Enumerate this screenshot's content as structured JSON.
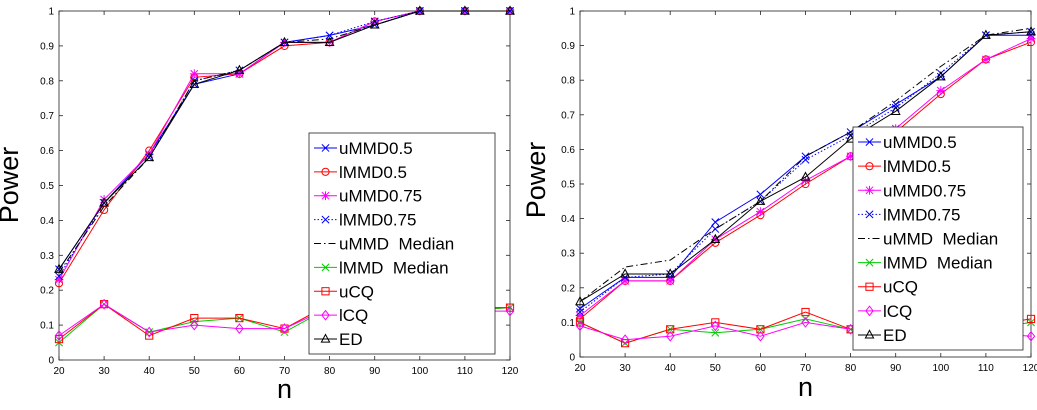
{
  "chart_data": [
    {
      "type": "line",
      "xlabel": "n",
      "ylabel": "Power",
      "xlim": [
        20,
        120
      ],
      "ylim": [
        0,
        1
      ],
      "x_ticks": [
        "20",
        "30",
        "40",
        "50",
        "60",
        "70",
        "80",
        "90",
        "100",
        "110",
        "120"
      ],
      "y_ticks": [
        "0",
        "0.1",
        "0.2",
        "0.3",
        "0.4",
        "0.5",
        "0.6",
        "0.7",
        "0.8",
        "0.9",
        "1"
      ],
      "grid": false,
      "legend_placement": "right",
      "x": [
        20,
        30,
        40,
        50,
        60,
        70,
        80,
        90,
        100,
        110,
        120
      ],
      "series": [
        {
          "name": "uMMD0.5",
          "color": "#0000ff",
          "line": "solid",
          "marker": "x",
          "values": [
            0.26,
            0.45,
            0.59,
            0.79,
            0.82,
            0.91,
            0.93,
            0.96,
            1.0,
            1.0,
            1.0
          ]
        },
        {
          "name": "lMMD0.5",
          "color": "#ff0000",
          "line": "solid",
          "marker": "o",
          "values": [
            0.22,
            0.43,
            0.6,
            0.81,
            0.82,
            0.9,
            0.91,
            0.97,
            1.0,
            1.0,
            1.0
          ]
        },
        {
          "name": "uMMD0.75",
          "color": "#ff00ff",
          "line": "solid",
          "marker": "*",
          "values": [
            0.23,
            0.46,
            0.59,
            0.82,
            0.82,
            0.91,
            0.91,
            0.97,
            1.0,
            1.0,
            1.0
          ]
        },
        {
          "name": "lMMD0.75",
          "color": "#0000ff",
          "line": "dotted",
          "marker": "x",
          "values": [
            0.24,
            0.45,
            0.58,
            0.8,
            0.83,
            0.91,
            0.93,
            0.97,
            1.0,
            1.0,
            1.0
          ]
        },
        {
          "name": "uMMD  Median",
          "color": "#000000",
          "line": "dashdot",
          "marker": "none",
          "values": [
            0.25,
            0.44,
            0.58,
            0.8,
            0.83,
            0.91,
            0.92,
            0.96,
            1.0,
            1.0,
            1.0
          ]
        },
        {
          "name": "lMMD  Median",
          "color": "#00cc00",
          "line": "solid",
          "marker": "x",
          "values": [
            0.05,
            0.16,
            0.08,
            0.11,
            0.12,
            0.08,
            0.15,
            0.13,
            0.14,
            0.14,
            0.15
          ]
        },
        {
          "name": "uCQ",
          "color": "#ff0000",
          "line": "solid",
          "marker": "s",
          "values": [
            0.06,
            0.16,
            0.07,
            0.12,
            0.12,
            0.09,
            0.16,
            0.14,
            0.14,
            0.15,
            0.15
          ]
        },
        {
          "name": "lCQ",
          "color": "#ff00ff",
          "line": "solid",
          "marker": "d",
          "values": [
            0.07,
            0.16,
            0.08,
            0.1,
            0.09,
            0.09,
            0.15,
            0.13,
            0.13,
            0.14,
            0.14
          ]
        },
        {
          "name": "ED",
          "color": "#000000",
          "line": "solid",
          "marker": "^",
          "values": [
            0.26,
            0.45,
            0.58,
            0.79,
            0.83,
            0.91,
            0.91,
            0.96,
            1.0,
            1.0,
            1.0
          ]
        }
      ]
    },
    {
      "type": "line",
      "xlabel": "n",
      "ylabel": "Power",
      "xlim": [
        20,
        120
      ],
      "ylim": [
        0,
        1
      ],
      "x_ticks": [
        "20",
        "30",
        "40",
        "50",
        "60",
        "70",
        "80",
        "90",
        "100",
        "110",
        "120"
      ],
      "y_ticks": [
        "0",
        "0.1",
        "0.2",
        "0.3",
        "0.4",
        "0.5",
        "0.6",
        "0.7",
        "0.8",
        "0.9",
        "1"
      ],
      "grid": false,
      "legend_placement": "right",
      "x": [
        20,
        30,
        40,
        50,
        60,
        70,
        80,
        90,
        100,
        110,
        120
      ],
      "series": [
        {
          "name": "uMMD0.5",
          "color": "#0000ff",
          "line": "solid",
          "marker": "x",
          "values": [
            0.14,
            0.23,
            0.23,
            0.39,
            0.47,
            0.58,
            0.65,
            0.73,
            0.81,
            0.93,
            0.93
          ]
        },
        {
          "name": "lMMD0.5",
          "color": "#ff0000",
          "line": "solid",
          "marker": "o",
          "values": [
            0.11,
            0.22,
            0.22,
            0.33,
            0.41,
            0.5,
            0.58,
            0.65,
            0.76,
            0.86,
            0.91
          ]
        },
        {
          "name": "uMMD0.75",
          "color": "#ff00ff",
          "line": "solid",
          "marker": "*",
          "values": [
            0.12,
            0.22,
            0.22,
            0.34,
            0.42,
            0.51,
            0.58,
            0.66,
            0.77,
            0.86,
            0.92
          ]
        },
        {
          "name": "lMMD0.75",
          "color": "#0000ff",
          "line": "dotted",
          "marker": "x",
          "values": [
            0.13,
            0.23,
            0.24,
            0.37,
            0.45,
            0.57,
            0.64,
            0.72,
            0.82,
            0.93,
            0.94
          ]
        },
        {
          "name": "uMMD  Median",
          "color": "#000000",
          "line": "dashdot",
          "marker": "none",
          "values": [
            0.16,
            0.26,
            0.28,
            0.37,
            0.45,
            0.58,
            0.65,
            0.74,
            0.84,
            0.93,
            0.95
          ]
        },
        {
          "name": "lMMD  Median",
          "color": "#00cc00",
          "line": "solid",
          "marker": "x",
          "values": [
            0.1,
            0.04,
            0.08,
            0.07,
            0.08,
            0.11,
            0.08,
            0.08,
            0.09,
            0.08,
            0.1
          ]
        },
        {
          "name": "uCQ",
          "color": "#ff0000",
          "line": "solid",
          "marker": "s",
          "values": [
            0.1,
            0.04,
            0.08,
            0.1,
            0.08,
            0.13,
            0.08,
            0.08,
            0.09,
            0.09,
            0.11
          ]
        },
        {
          "name": "lCQ",
          "color": "#ff00ff",
          "line": "solid",
          "marker": "d",
          "values": [
            0.09,
            0.05,
            0.06,
            0.09,
            0.06,
            0.1,
            0.08,
            0.07,
            0.07,
            0.07,
            0.06
          ]
        },
        {
          "name": "ED",
          "color": "#000000",
          "line": "solid",
          "marker": "^",
          "values": [
            0.16,
            0.24,
            0.24,
            0.34,
            0.45,
            0.52,
            0.63,
            0.71,
            0.81,
            0.93,
            0.94
          ]
        }
      ]
    }
  ]
}
